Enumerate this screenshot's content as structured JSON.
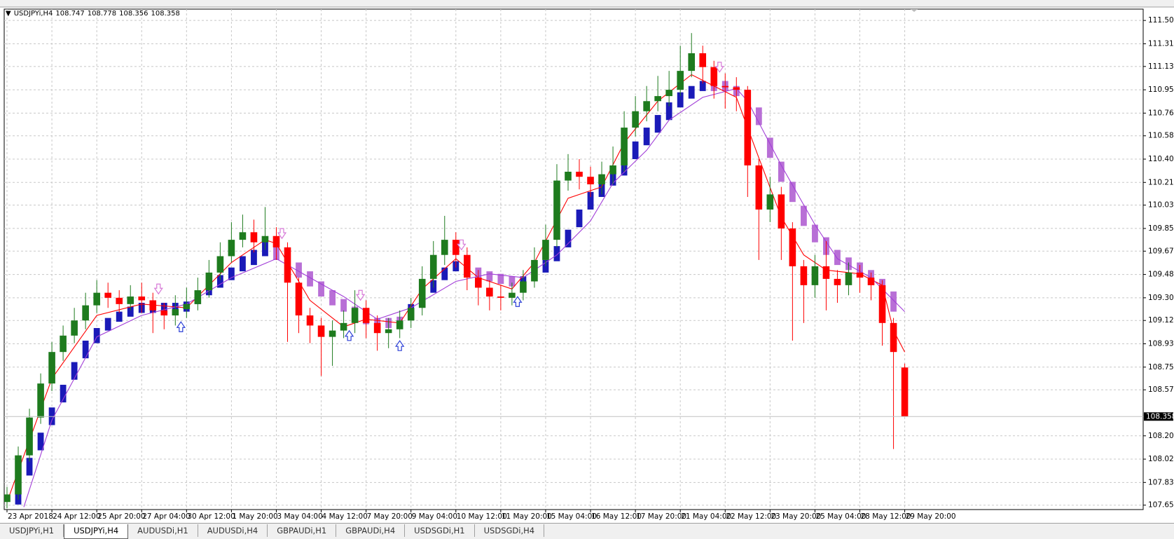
{
  "chart_data": {
    "type": "candlestick",
    "ylim": [
      107.62,
      111.59
    ],
    "yticks": [
      107.655,
      107.835,
      {
        "value": 108.02,
        "label": "108.020"
      },
      108.205,
      108.57,
      {
        "value": 108.75,
        "label": "108.750"
      },
      108.935,
      {
        "value": 109.12,
        "label": "109.120"
      },
      {
        "value": 109.3,
        "label": "109.300"
      },
      109.485,
      {
        "value": 109.67,
        "label": "109.670"
      },
      {
        "value": 109.85,
        "label": "109.850"
      },
      110.035,
      110.215,
      {
        "value": 110.4,
        "label": "110.400"
      },
      110.585,
      110.765,
      {
        "value": 110.95,
        "label": "110.950"
      },
      111.135,
      111.315,
      {
        "value": 111.5,
        "label": "111.500"
      }
    ],
    "xlim": [
      -0.5,
      202.5
    ],
    "xticks": [
      {
        "value": 0,
        "label": "23 Apr 2018"
      },
      {
        "value": 8,
        "label": "24 Apr 12:00"
      },
      {
        "value": 16,
        "label": "25 Apr 20:00"
      },
      {
        "value": 24,
        "label": "27 Apr 04:00"
      },
      {
        "value": 32,
        "label": "30 Apr 12:00"
      },
      {
        "value": 40,
        "label": "1 May 20:00"
      },
      {
        "value": 48,
        "label": "3 May 04:00"
      },
      {
        "value": 56,
        "label": "4 May 12:00"
      },
      {
        "value": 64,
        "label": "7 May 20:00"
      },
      {
        "value": 72,
        "label": "9 May 04:00"
      },
      {
        "value": 80,
        "label": "10 May 12:00"
      },
      {
        "value": 88,
        "label": "11 May 20:00"
      },
      {
        "value": 96,
        "label": "15 May 04:00"
      },
      {
        "value": 104,
        "label": "16 May 12:00"
      },
      {
        "value": 112,
        "label": "17 May 20:00"
      },
      {
        "value": 120,
        "label": "21 May 04:00"
      },
      {
        "value": 128,
        "label": "22 May 12:00"
      },
      {
        "value": 136,
        "label": "23 May 20:00"
      },
      {
        "value": 144,
        "label": "25 May 04:00"
      },
      {
        "value": 152,
        "label": "28 May 12:00"
      },
      {
        "value": 160,
        "label": "29 May 20:00"
      }
    ],
    "grid": true,
    "symbol": "USDJPYi,H4",
    "colors": {
      "up": "#1e7b1e",
      "down": "#ff0000",
      "block_up": "#1a1ab8",
      "block_down": "#b86fd6",
      "signal_up": "#2b3fd6",
      "signal_down": "#d77ad8",
      "price_line": "#c0c0c0"
    },
    "x": [
      0,
      2,
      4,
      6,
      8,
      10,
      12,
      14,
      16,
      18,
      20,
      22,
      24,
      26,
      28,
      30,
      32,
      34,
      36,
      38,
      40,
      42,
      44,
      46,
      48,
      50,
      52,
      54,
      56,
      58,
      60,
      62,
      64,
      66,
      68,
      70,
      72,
      74,
      76,
      78,
      80,
      82,
      84,
      86,
      88,
      90,
      92,
      94,
      96,
      98,
      100,
      102,
      104,
      106,
      108,
      110,
      112,
      114,
      116,
      118,
      120,
      122,
      124,
      126,
      128,
      130,
      132,
      134,
      136,
      138,
      140,
      142,
      144,
      146,
      148,
      150,
      152,
      154,
      156,
      158,
      160
    ],
    "ohlc": [
      [
        107.68,
        107.8,
        107.63,
        107.74
      ],
      [
        107.74,
        108.12,
        107.7,
        108.05
      ],
      [
        108.05,
        108.42,
        108.0,
        108.35
      ],
      [
        108.35,
        108.7,
        108.3,
        108.62
      ],
      [
        108.62,
        108.95,
        108.56,
        108.87
      ],
      [
        108.87,
        109.08,
        108.8,
        109.0
      ],
      [
        109.0,
        109.22,
        108.94,
        109.12
      ],
      [
        109.12,
        109.34,
        109.05,
        109.24
      ],
      [
        109.24,
        109.44,
        109.18,
        109.34
      ],
      [
        109.34,
        109.42,
        109.22,
        109.3
      ],
      [
        109.3,
        109.36,
        109.18,
        109.25
      ],
      [
        109.25,
        109.4,
        109.2,
        109.31
      ],
      [
        109.31,
        109.42,
        109.18,
        109.28
      ],
      [
        109.28,
        109.34,
        109.02,
        109.2
      ],
      [
        109.2,
        109.26,
        109.05,
        109.16
      ],
      [
        109.16,
        109.32,
        109.08,
        109.21
      ],
      [
        109.21,
        109.38,
        109.14,
        109.25
      ],
      [
        109.25,
        109.46,
        109.2,
        109.36
      ],
      [
        109.36,
        109.6,
        109.3,
        109.5
      ],
      [
        109.5,
        109.74,
        109.44,
        109.63
      ],
      [
        109.63,
        109.9,
        109.58,
        109.76
      ],
      [
        109.76,
        109.96,
        109.7,
        109.82
      ],
      [
        109.82,
        109.92,
        109.66,
        109.74
      ],
      [
        109.74,
        110.02,
        109.68,
        109.79
      ],
      [
        109.79,
        109.86,
        109.6,
        109.7
      ],
      [
        109.7,
        109.74,
        108.95,
        109.42
      ],
      [
        109.42,
        109.46,
        109.02,
        109.16
      ],
      [
        109.16,
        109.22,
        108.94,
        109.08
      ],
      [
        109.08,
        109.14,
        108.68,
        108.99
      ],
      [
        108.99,
        109.12,
        108.76,
        109.04
      ],
      [
        109.04,
        109.2,
        108.98,
        109.1
      ],
      [
        109.1,
        109.36,
        109.02,
        109.22
      ],
      [
        109.22,
        109.28,
        108.98,
        109.1
      ],
      [
        109.1,
        109.16,
        108.88,
        109.02
      ],
      [
        109.02,
        109.14,
        108.9,
        109.05
      ],
      [
        109.05,
        109.2,
        108.98,
        109.12
      ],
      [
        109.12,
        109.3,
        109.06,
        109.22
      ],
      [
        109.22,
        109.55,
        109.16,
        109.45
      ],
      [
        109.45,
        109.75,
        109.38,
        109.64
      ],
      [
        109.64,
        109.95,
        109.56,
        109.76
      ],
      [
        109.76,
        109.82,
        109.54,
        109.64
      ],
      [
        109.64,
        109.7,
        109.36,
        109.46
      ],
      [
        109.46,
        109.52,
        109.24,
        109.38
      ],
      [
        109.38,
        109.44,
        109.2,
        109.31
      ],
      [
        109.31,
        109.4,
        109.2,
        109.3
      ],
      [
        109.3,
        109.42,
        109.24,
        109.34
      ],
      [
        109.34,
        109.52,
        109.28,
        109.43
      ],
      [
        109.43,
        109.7,
        109.38,
        109.6
      ],
      [
        109.6,
        109.88,
        109.55,
        109.76
      ],
      [
        109.76,
        110.36,
        109.7,
        110.23
      ],
      [
        110.23,
        110.44,
        110.15,
        110.3
      ],
      [
        110.3,
        110.4,
        110.16,
        110.26
      ],
      [
        110.26,
        110.34,
        110.1,
        110.2
      ],
      [
        110.2,
        110.38,
        110.12,
        110.28
      ],
      [
        110.28,
        110.5,
        110.2,
        110.35
      ],
      [
        110.35,
        110.78,
        110.3,
        110.65
      ],
      [
        110.65,
        110.9,
        110.58,
        110.78
      ],
      [
        110.78,
        110.98,
        110.7,
        110.86
      ],
      [
        110.86,
        111.06,
        110.78,
        110.9
      ],
      [
        110.9,
        111.1,
        110.82,
        110.95
      ],
      [
        110.95,
        111.3,
        110.9,
        111.1
      ],
      [
        111.1,
        111.4,
        111.05,
        111.24
      ],
      [
        111.24,
        111.3,
        111.0,
        111.13
      ],
      [
        111.13,
        111.18,
        110.88,
        110.98
      ],
      [
        110.98,
        111.08,
        110.8,
        110.97
      ],
      [
        110.97,
        111.05,
        110.78,
        110.95
      ],
      [
        110.95,
        110.98,
        110.1,
        110.35
      ],
      [
        110.35,
        110.4,
        109.6,
        110.0
      ],
      [
        110.0,
        110.26,
        109.9,
        110.12
      ],
      [
        110.12,
        110.18,
        109.6,
        109.85
      ],
      [
        109.85,
        109.9,
        108.96,
        109.55
      ],
      [
        109.55,
        109.6,
        109.1,
        109.4
      ],
      [
        109.4,
        109.64,
        109.3,
        109.55
      ],
      [
        109.55,
        109.75,
        109.2,
        109.45
      ],
      [
        109.45,
        109.52,
        109.26,
        109.4
      ],
      [
        109.4,
        109.58,
        109.32,
        109.5
      ],
      [
        109.5,
        109.56,
        109.34,
        109.46
      ],
      [
        109.46,
        109.5,
        109.28,
        109.4
      ],
      [
        109.4,
        109.44,
        108.92,
        109.1
      ],
      [
        109.1,
        109.14,
        108.1,
        108.87
      ],
      [
        108.747,
        108.778,
        108.356,
        108.358
      ]
    ],
    "blocks": [
      [
        2,
        107.66,
        107.8
      ],
      [
        4,
        107.89,
        108.03
      ],
      [
        6,
        108.09,
        108.23
      ],
      [
        8,
        108.29,
        108.43
      ],
      [
        10,
        108.47,
        108.61
      ],
      [
        12,
        108.65,
        108.79
      ],
      [
        14,
        108.82,
        108.96
      ],
      [
        16,
        108.94,
        109.06
      ],
      [
        18,
        109.04,
        109.14
      ],
      [
        20,
        109.11,
        109.19
      ],
      [
        22,
        109.15,
        109.23
      ],
      [
        24,
        109.18,
        109.26
      ],
      [
        26,
        109.18,
        109.26
      ],
      [
        28,
        109.18,
        109.26
      ],
      [
        30,
        109.18,
        109.26
      ],
      [
        32,
        109.19,
        109.27
      ],
      [
        34,
        109.25,
        109.35
      ],
      [
        36,
        109.32,
        109.42
      ],
      [
        38,
        109.38,
        109.48
      ],
      [
        40,
        109.44,
        109.54
      ],
      [
        42,
        109.51,
        109.63
      ],
      [
        44,
        109.56,
        109.68
      ],
      [
        46,
        109.63,
        109.75
      ],
      [
        48,
        109.72,
        109.6
      ],
      [
        50,
        109.66,
        109.54
      ],
      [
        52,
        109.58,
        109.46
      ],
      [
        54,
        109.51,
        109.39
      ],
      [
        56,
        109.43,
        109.31
      ],
      [
        58,
        109.36,
        109.24
      ],
      [
        60,
        109.29,
        109.19
      ],
      [
        62,
        109.23,
        109.13
      ],
      [
        64,
        109.17,
        109.09
      ],
      [
        66,
        109.14,
        109.06
      ],
      [
        68,
        109.14,
        109.06
      ],
      [
        70,
        109.15,
        109.07
      ],
      [
        72,
        109.15,
        109.25
      ],
      [
        74,
        109.24,
        109.34
      ],
      [
        76,
        109.34,
        109.44
      ],
      [
        78,
        109.44,
        109.54
      ],
      [
        80,
        109.51,
        109.59
      ],
      [
        82,
        109.57,
        109.49
      ],
      [
        84,
        109.54,
        109.46
      ],
      [
        86,
        109.51,
        109.43
      ],
      [
        88,
        109.49,
        109.41
      ],
      [
        90,
        109.47,
        109.39
      ],
      [
        92,
        109.39,
        109.47
      ],
      [
        94,
        109.44,
        109.52
      ],
      [
        96,
        109.5,
        109.6
      ],
      [
        98,
        109.59,
        109.71
      ],
      [
        100,
        109.7,
        109.84
      ],
      [
        102,
        109.86,
        110.0
      ],
      [
        104,
        110.0,
        110.14
      ],
      [
        106,
        110.1,
        110.22
      ],
      [
        108,
        110.19,
        110.31
      ],
      [
        110,
        110.27,
        110.41
      ],
      [
        112,
        110.4,
        110.54
      ],
      [
        114,
        110.51,
        110.65
      ],
      [
        116,
        110.61,
        110.75
      ],
      [
        118,
        110.71,
        110.85
      ],
      [
        120,
        110.81,
        110.93
      ],
      [
        122,
        110.88,
        110.98
      ],
      [
        124,
        110.94,
        111.02
      ],
      [
        126,
        111.02,
        110.94
      ],
      [
        128,
        111.02,
        110.94
      ],
      [
        130,
        110.98,
        110.9
      ],
      [
        132,
        110.92,
        110.82
      ],
      [
        134,
        110.81,
        110.67
      ],
      [
        136,
        110.57,
        110.41
      ],
      [
        138,
        110.38,
        110.22
      ],
      [
        140,
        110.22,
        110.06
      ],
      [
        142,
        110.03,
        109.87
      ],
      [
        144,
        109.88,
        109.74
      ],
      [
        146,
        109.78,
        109.64
      ],
      [
        148,
        109.68,
        109.56
      ],
      [
        150,
        109.62,
        109.52
      ],
      [
        152,
        109.58,
        109.48
      ],
      [
        154,
        109.52,
        109.4
      ],
      [
        156,
        109.45,
        109.31
      ],
      [
        158,
        109.35,
        109.19
      ]
    ],
    "lines": [
      {
        "color": "#ff0000",
        "x": [
          0,
          8,
          16,
          24,
          32,
          40,
          46,
          48,
          54,
          60,
          64,
          70,
          74,
          80,
          84,
          90,
          94,
          100,
          106,
          110,
          116,
          122,
          126,
          130,
          134,
          138,
          142,
          146,
          152,
          156,
          158,
          160
        ],
        "values": [
          107.68,
          108.66,
          109.16,
          109.25,
          109.22,
          109.58,
          109.76,
          109.73,
          109.28,
          109.07,
          109.13,
          109.1,
          109.37,
          109.61,
          109.46,
          109.37,
          109.58,
          110.09,
          110.18,
          110.53,
          110.86,
          111.07,
          110.98,
          110.89,
          110.41,
          109.94,
          109.64,
          109.52,
          109.49,
          109.4,
          109.04,
          108.87
        ]
      },
      {
        "color": "#a23fd8",
        "x": [
          3,
          8,
          16,
          24,
          32,
          40,
          48,
          54,
          60,
          66,
          72,
          80,
          86,
          92,
          98,
          104,
          108,
          114,
          118,
          124,
          130,
          132,
          138,
          144,
          148,
          154,
          160
        ],
        "values": [
          107.64,
          108.33,
          108.99,
          109.16,
          109.25,
          109.46,
          109.61,
          109.46,
          109.31,
          109.13,
          109.22,
          109.43,
          109.49,
          109.46,
          109.64,
          109.91,
          110.21,
          110.47,
          110.71,
          110.89,
          110.96,
          110.86,
          110.35,
          109.88,
          109.61,
          109.46,
          109.19
        ]
      }
    ],
    "signals": [
      {
        "x": 27,
        "value": 109.37,
        "direction": "down"
      },
      {
        "x": 49,
        "value": 109.81,
        "direction": "down"
      },
      {
        "x": 63,
        "value": 109.32,
        "direction": "down"
      },
      {
        "x": 81,
        "value": 109.72,
        "direction": "down"
      },
      {
        "x": 127,
        "value": 111.13,
        "direction": "down"
      },
      {
        "x": 31,
        "value": 109.07,
        "direction": "up"
      },
      {
        "x": 61,
        "value": 109.0,
        "direction": "up"
      },
      {
        "x": 70,
        "value": 108.92,
        "direction": "up"
      },
      {
        "x": 91,
        "value": 109.27,
        "direction": "up"
      }
    ]
  },
  "tabs": [
    "USDJPYi,H1",
    "USDJPYi,H4",
    "AUDUSDi,H1",
    "AUDUSDi,H4",
    "GBPAUDi,H1",
    "GBPAUDi,H4",
    "USDSGDi,H1",
    "USDSGDi,H4"
  ],
  "active_tab": 1
}
